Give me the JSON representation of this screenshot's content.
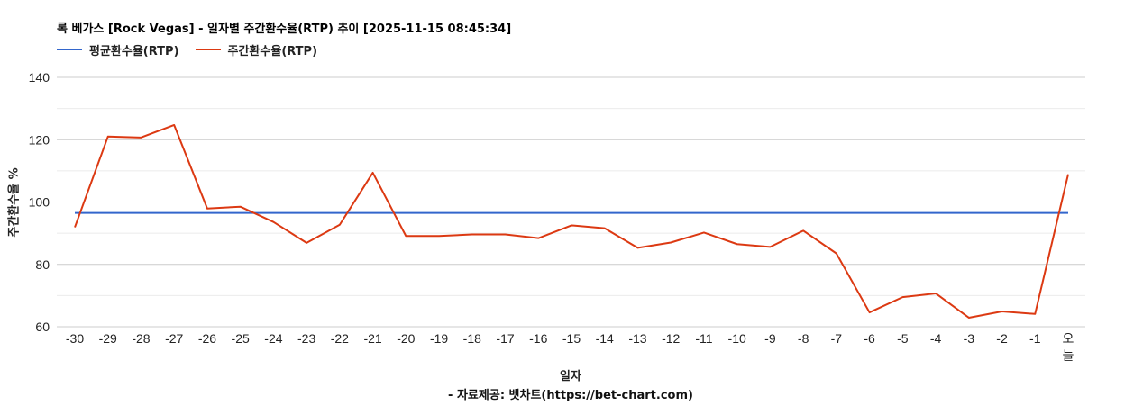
{
  "chart": {
    "title": "록 베가스 [Rock Vegas] - 일자별 주간환수율(RTP) 추이 [2025-11-15 08:45:34]",
    "legend": [
      {
        "label": "평균환수율(RTP)",
        "color": "#3366cc"
      },
      {
        "label": "주간환수율(RTP)",
        "color": "#dc3912"
      }
    ],
    "y_axis_title": "주간환수율 %",
    "x_axis_title": "일자",
    "source": "- 자료제공: 벳차트(https://bet-chart.com)",
    "y_ticks": [
      "140",
      "120",
      "100",
      "80",
      "60"
    ],
    "x_ticks": [
      "-30",
      "-29",
      "-28",
      "-27",
      "-26",
      "-25",
      "-24",
      "-23",
      "-22",
      "-21",
      "-20",
      "-19",
      "-18",
      "-17",
      "-16",
      "-15",
      "-14",
      "-13",
      "-12",
      "-11",
      "-10",
      "-9",
      "-8",
      "-7",
      "-6",
      "-5",
      "-4",
      "-3",
      "-2",
      "-1",
      "오늘"
    ]
  },
  "chart_data": {
    "type": "line",
    "title": "록 베가스 [Rock Vegas] - 일자별 주간환수율(RTP) 추이 [2025-11-15 08:45:34]",
    "xlabel": "일자",
    "ylabel": "주간환수율 %",
    "ylim": [
      60,
      140
    ],
    "yticks": [
      60,
      80,
      100,
      120,
      140
    ],
    "grid": true,
    "legend_position": "top",
    "categories": [
      "-30",
      "-29",
      "-28",
      "-27",
      "-26",
      "-25",
      "-24",
      "-23",
      "-22",
      "-21",
      "-20",
      "-19",
      "-18",
      "-17",
      "-16",
      "-15",
      "-14",
      "-13",
      "-12",
      "-11",
      "-10",
      "-9",
      "-8",
      "-7",
      "-6",
      "-5",
      "-4",
      "-3",
      "-2",
      "-1",
      "오늘"
    ],
    "series": [
      {
        "name": "평균환수율(RTP)",
        "color": "#3366cc",
        "values": [
          96.5,
          96.5,
          96.5,
          96.5,
          96.5,
          96.5,
          96.5,
          96.5,
          96.5,
          96.5,
          96.5,
          96.5,
          96.5,
          96.5,
          96.5,
          96.5,
          96.5,
          96.5,
          96.5,
          96.5,
          96.5,
          96.5,
          96.5,
          96.5,
          96.5,
          96.5,
          96.5,
          96.5,
          96.5,
          96.5,
          96.5
        ]
      },
      {
        "name": "주간환수율(RTP)",
        "color": "#dc3912",
        "values": [
          91.9,
          121.0,
          120.7,
          124.7,
          97.9,
          98.5,
          93.6,
          86.9,
          92.7,
          109.4,
          89.1,
          89.1,
          89.6,
          89.6,
          88.4,
          92.5,
          91.6,
          85.3,
          87.0,
          90.2,
          86.5,
          85.6,
          90.8,
          83.5,
          64.6,
          69.5,
          70.7,
          62.9,
          64.9,
          64.1,
          108.9
        ]
      }
    ],
    "source": "- 자료제공: 벳차트(https://bet-chart.com)"
  }
}
